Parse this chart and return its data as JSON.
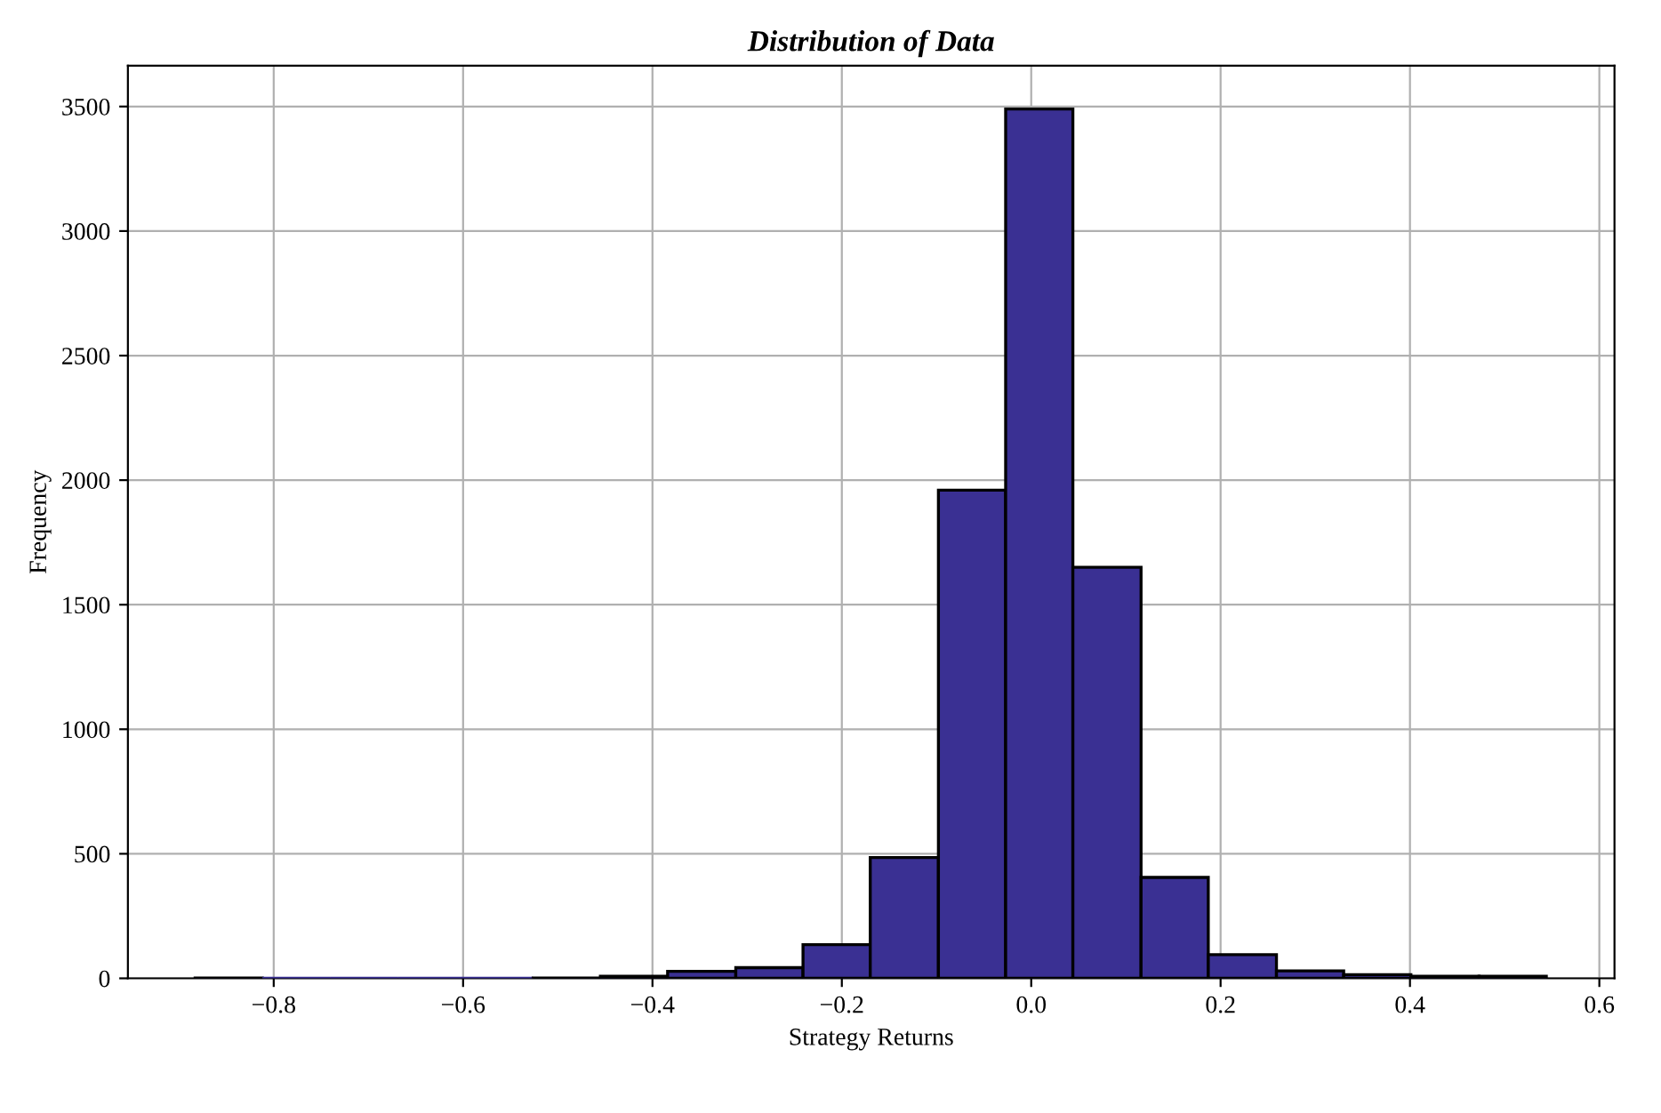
{
  "chart_data": {
    "type": "histogram",
    "title": "Distribution of Data",
    "xlabel": "Strategy Returns",
    "ylabel": "Frequency",
    "bins": [
      -0.883,
      -0.812,
      -0.74,
      -0.669,
      -0.598,
      -0.526,
      -0.455,
      -0.384,
      -0.312,
      -0.241,
      -0.17,
      -0.098,
      -0.027,
      0.044,
      0.116,
      0.187,
      0.259,
      0.33,
      0.401,
      0.473,
      0.544
    ],
    "values": [
      1,
      0,
      0,
      0,
      0,
      1,
      8,
      28,
      43,
      135,
      485,
      1960,
      3490,
      1650,
      405,
      95,
      30,
      15,
      8,
      8
    ],
    "color": "#3a3093",
    "xlim": [
      -0.954,
      0.616
    ],
    "xticks": [
      {
        "value": -0.8,
        "label": "−0.8"
      },
      {
        "value": -0.6,
        "label": "−0.6"
      },
      {
        "value": -0.4,
        "label": "−0.4"
      },
      {
        "value": -0.2,
        "label": "−0.2"
      },
      {
        "value": 0.0,
        "label": "0.0"
      },
      {
        "value": 0.2,
        "label": "0.2"
      },
      {
        "value": 0.4,
        "label": "0.4"
      },
      {
        "value": 0.6,
        "label": "0.6"
      }
    ],
    "ylim": [
      0,
      3664
    ],
    "yticks": [
      0,
      500,
      1000,
      1500,
      2000,
      2500,
      3000,
      3500
    ],
    "grid": true
  }
}
